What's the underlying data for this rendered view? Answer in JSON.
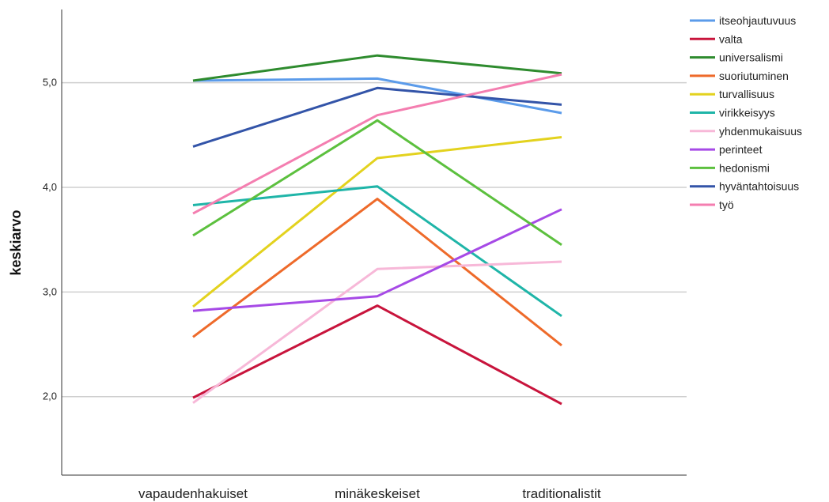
{
  "chart_data": {
    "type": "line",
    "title": "",
    "xlabel": "",
    "ylabel": "keskiarvo",
    "categories": [
      "vapaudenhakuiset",
      "minäkeskeiset",
      "traditionalistit"
    ],
    "ylim": [
      1.25,
      5.7
    ],
    "yticks": [
      2.0,
      3.0,
      4.0,
      5.0
    ],
    "ytick_labels": [
      "2,0",
      "3,0",
      "4,0",
      "5,0"
    ],
    "grid": "horizontal",
    "legend_position": "top-right",
    "series": [
      {
        "name": "itseohjautuvuus",
        "color": "#5b9bea",
        "values": [
          5.02,
          5.04,
          4.71
        ]
      },
      {
        "name": "valta",
        "color": "#c8143c",
        "values": [
          1.99,
          2.87,
          1.93
        ]
      },
      {
        "name": "universalismi",
        "color": "#2e8b2e",
        "values": [
          5.02,
          5.26,
          5.09
        ]
      },
      {
        "name": "suoriutuminen",
        "color": "#ee6a2a",
        "values": [
          2.57,
          3.89,
          2.49
        ]
      },
      {
        "name": "turvallisuus",
        "color": "#e3d21e",
        "values": [
          2.86,
          4.28,
          4.48
        ]
      },
      {
        "name": "virikkeisyys",
        "color": "#1fb5a8",
        "values": [
          3.83,
          4.01,
          2.77
        ]
      },
      {
        "name": "yhdenmukaisuus",
        "color": "#f7b8d8",
        "values": [
          1.94,
          3.22,
          3.29
        ]
      },
      {
        "name": "perinteet",
        "color": "#a64ae6",
        "values": [
          2.82,
          2.96,
          3.79
        ]
      },
      {
        "name": "hedonismi",
        "color": "#5cc03e",
        "values": [
          3.54,
          4.64,
          3.45
        ]
      },
      {
        "name": "hyväntahtoisuus",
        "color": "#3354a8",
        "values": [
          4.39,
          4.95,
          4.79
        ]
      },
      {
        "name": "työ",
        "color": "#f47eb0",
        "values": [
          3.75,
          4.69,
          5.08
        ]
      }
    ]
  }
}
